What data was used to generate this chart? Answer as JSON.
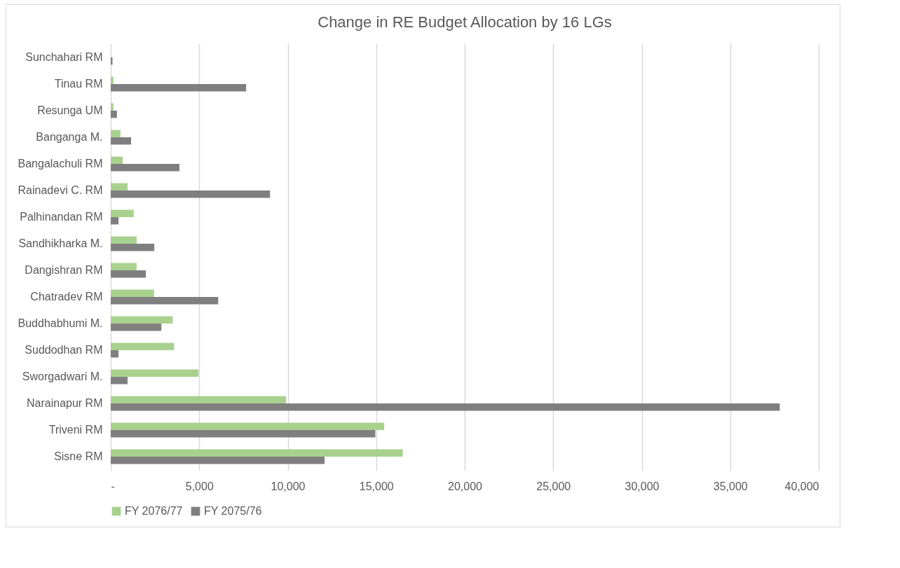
{
  "chart_data": {
    "type": "bar",
    "orientation": "horizontal",
    "title": "Change in RE Budget Allocation by 16 LGs",
    "categories": [
      "Sunchahari RM",
      "Tinau RM",
      "Resunga UM",
      "Banganga M.",
      "Bangalachuli RM",
      "Rainadevi C. RM",
      "Palhinandan RM",
      "Sandhikharka M.",
      "Dangishran RM",
      "Chatradev RM",
      "Buddhabhumi M.",
      "Suddodhan RM",
      "Sworgadwari M.",
      "Narainapur RM",
      "Triveni RM",
      "Sisne RM"
    ],
    "series": [
      {
        "name": "FY 2076/77",
        "color": "#a9d18e",
        "values": [
          0,
          150,
          150,
          550,
          670,
          950,
          1300,
          1460,
          1460,
          2450,
          3500,
          3580,
          4960,
          9900,
          15450,
          16500
        ]
      },
      {
        "name": "FY 2075/76",
        "color": "#7f7f7f",
        "values": [
          100,
          7650,
          350,
          1150,
          3880,
          9000,
          440,
          2460,
          1980,
          6070,
          2860,
          440,
          950,
          37800,
          14950,
          12080
        ]
      }
    ],
    "xlim": [
      0,
      40000
    ],
    "xticks": [
      {
        "value": 0,
        "label": "-"
      },
      {
        "value": 5000,
        "label": "5,000"
      },
      {
        "value": 10000,
        "label": "10,000"
      },
      {
        "value": 15000,
        "label": "15,000"
      },
      {
        "value": 20000,
        "label": "20,000"
      },
      {
        "value": 25000,
        "label": "25,000"
      },
      {
        "value": 30000,
        "label": "30,000"
      },
      {
        "value": 35000,
        "label": "35,000"
      },
      {
        "value": 40000,
        "label": "40,000"
      }
    ],
    "grid": "x",
    "legend": "bottom"
  }
}
